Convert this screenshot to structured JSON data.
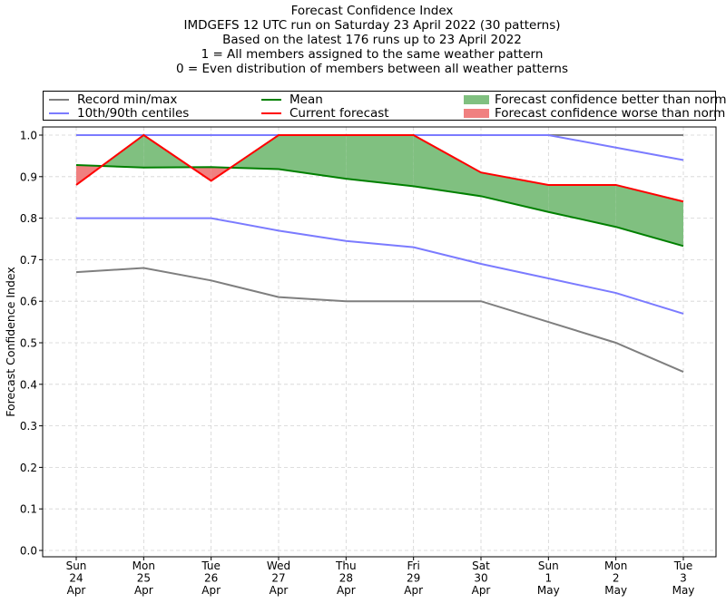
{
  "titles": {
    "line1": "Forecast Confidence Index",
    "line2": "IMDGEFS 12 UTC run on Saturday 23 April 2022 (30 patterns)",
    "line3": "Based on the latest 176 runs up to 23 April 2022",
    "line4": "1 = All members assigned to the same weather pattern",
    "line5": "0 = Even distribution of members between all weather patterns"
  },
  "legend": {
    "record": "Record min/max",
    "centiles": "10th/90th centiles",
    "mean": "Mean",
    "current": "Current forecast",
    "better": "Forecast confidence better than normal",
    "worse": "Forecast confidence worse than normal"
  },
  "colors": {
    "record": "#7f7f7f",
    "centiles": "#7b7bff",
    "mean": "#008000",
    "current": "#ff0000",
    "better": "#80c080",
    "worse": "#f08080",
    "grid": "#d3d3d3"
  },
  "chart_data": {
    "type": "line",
    "ylabel": "Forecast Confidence Index",
    "ylim": [
      0,
      1
    ],
    "yticks": [
      "0.0",
      "0.1",
      "0.2",
      "0.3",
      "0.4",
      "0.5",
      "0.6",
      "0.7",
      "0.8",
      "0.9",
      "1.0"
    ],
    "categories": [
      [
        "Sun",
        "24",
        "Apr"
      ],
      [
        "Mon",
        "25",
        "Apr"
      ],
      [
        "Tue",
        "26",
        "Apr"
      ],
      [
        "Wed",
        "27",
        "Apr"
      ],
      [
        "Thu",
        "28",
        "Apr"
      ],
      [
        "Fri",
        "29",
        "Apr"
      ],
      [
        "Sat",
        "30",
        "Apr"
      ],
      [
        "Sun",
        "1",
        "May"
      ],
      [
        "Mon",
        "2",
        "May"
      ],
      [
        "Tue",
        "3",
        "May"
      ]
    ],
    "series": [
      {
        "name": "Record max",
        "key": "record",
        "values": [
          1.0,
          1.0,
          1.0,
          1.0,
          1.0,
          1.0,
          1.0,
          1.0,
          1.0,
          1.0
        ]
      },
      {
        "name": "Record min",
        "key": "record",
        "values": [
          0.67,
          0.68,
          0.65,
          0.61,
          0.6,
          0.6,
          0.6,
          0.55,
          0.5,
          0.43
        ]
      },
      {
        "name": "90th centile",
        "key": "centiles",
        "values": [
          1.0,
          1.0,
          1.0,
          1.0,
          1.0,
          1.0,
          1.0,
          1.0,
          0.97,
          0.94
        ]
      },
      {
        "name": "10th centile",
        "key": "centiles",
        "values": [
          0.8,
          0.8,
          0.8,
          0.77,
          0.745,
          0.73,
          0.69,
          0.655,
          0.62,
          0.57
        ]
      },
      {
        "name": "Mean",
        "key": "mean",
        "values": [
          0.928,
          0.922,
          0.923,
          0.918,
          0.895,
          0.877,
          0.853,
          0.815,
          0.779,
          0.733
        ]
      },
      {
        "name": "Current forecast",
        "key": "current",
        "values": [
          0.88,
          1.0,
          0.89,
          1.0,
          1.0,
          1.0,
          0.91,
          0.88,
          0.88,
          0.84
        ]
      }
    ]
  }
}
